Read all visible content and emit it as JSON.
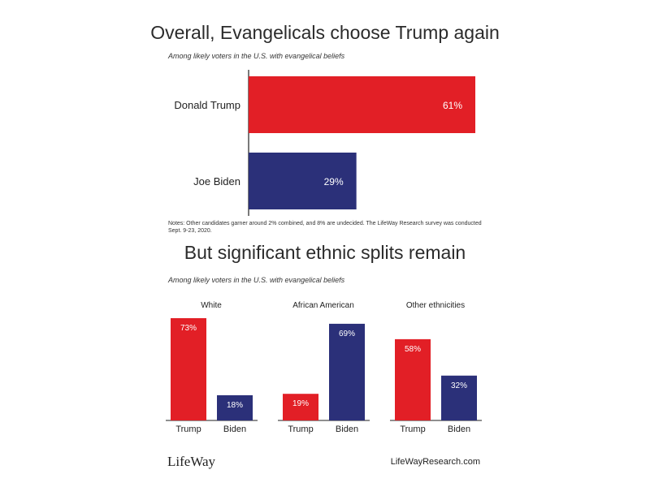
{
  "colors": {
    "trump": "#e21f26",
    "biden": "#2b3079",
    "axis": "#222222"
  },
  "chart_data": [
    {
      "type": "bar",
      "orientation": "horizontal",
      "title": "Overall, Evangelicals choose Trump again",
      "subtitle": "Among likely voters in the U.S. with evangelical beliefs",
      "categories": [
        "Donald Trump",
        "Joe Biden"
      ],
      "values": [
        61,
        29
      ],
      "value_labels": [
        "61%",
        "29%"
      ],
      "xlim": [
        0,
        61
      ],
      "grid": false,
      "notes": "Notes: Other candidates garner around 2% combined, and 8% are undecided. The LifeWay Research survey was conducted Sept. 9-23, 2020."
    },
    {
      "type": "bar",
      "orientation": "vertical",
      "title": "But significant ethnic splits remain",
      "subtitle": "Among likely voters in the U.S. with evangelical beliefs",
      "groups": [
        {
          "name": "White",
          "categories": [
            "Trump",
            "Biden"
          ],
          "values": [
            73,
            18
          ],
          "value_labels": [
            "73%",
            "18%"
          ]
        },
        {
          "name": "African American",
          "categories": [
            "Trump",
            "Biden"
          ],
          "values": [
            19,
            69
          ],
          "value_labels": [
            "19%",
            "69%"
          ]
        },
        {
          "name": "Other ethnicities",
          "categories": [
            "Trump",
            "Biden"
          ],
          "values": [
            58,
            32
          ],
          "value_labels": [
            "58%",
            "32%"
          ]
        }
      ],
      "ylim": [
        0,
        73
      ],
      "grid": false
    }
  ],
  "footer": {
    "logo_text": "LifeWay",
    "url": "LifeWayResearch.com"
  }
}
